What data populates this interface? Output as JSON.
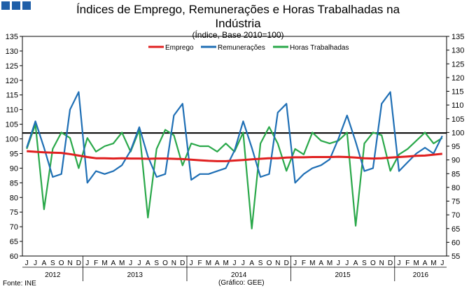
{
  "header": {
    "title": "Índices de Emprego, Remunerações e Horas Trabalhadas na Indústria",
    "subtitle": "(Índice, Base 2010=100)"
  },
  "footer": {
    "source": "Fonte: INE",
    "credit": "(Gráfico: GEE)"
  },
  "colors": {
    "emprego": "#e02020",
    "remuneracoes": "#1f6fb5",
    "horas": "#2aa84a",
    "reference_line": "#000000",
    "brand_squares": "#1f5fa8"
  },
  "chart_data": {
    "type": "line",
    "title": "Índices de Emprego, Remunerações e Horas Trabalhadas na Indústria",
    "subtitle": "(Índice, Base 2010=100)",
    "month_labels": [
      "J",
      "J",
      "A",
      "S",
      "O",
      "N",
      "D",
      "J",
      "F",
      "M",
      "A",
      "M",
      "J",
      "J",
      "A",
      "S",
      "O",
      "N",
      "D",
      "J",
      "F",
      "M",
      "A",
      "M",
      "J",
      "J",
      "A",
      "S",
      "O",
      "N",
      "D",
      "J",
      "F",
      "M",
      "A",
      "M",
      "J",
      "J",
      "A",
      "S",
      "O",
      "N",
      "D",
      "J",
      "F",
      "M",
      "A",
      "M",
      "J"
    ],
    "year_labels": [
      {
        "label": "2012",
        "start": 0,
        "end": 6
      },
      {
        "label": "2013",
        "start": 7,
        "end": 18
      },
      {
        "label": "2014",
        "start": 19,
        "end": 30
      },
      {
        "label": "2015",
        "start": 31,
        "end": 42
      },
      {
        "label": "2016",
        "start": 43,
        "end": 48
      }
    ],
    "y_left": {
      "min": 60,
      "max": 135,
      "step": 5,
      "series": [
        "Emprego",
        "Remunerações"
      ]
    },
    "y_right": {
      "min": 55,
      "max": 135,
      "step": 5,
      "series": [
        "Horas Trabalhadas"
      ]
    },
    "reference_line": {
      "axis": "left",
      "value": 102
    },
    "legend_position": "top-center",
    "series": [
      {
        "name": "Emprego",
        "axis": "left",
        "color": "#e02020",
        "values": [
          95.8,
          95.6,
          95.4,
          95.3,
          95.2,
          94.8,
          94.3,
          93.8,
          93.4,
          93.4,
          93.3,
          93.4,
          93.3,
          93.3,
          93.2,
          93.3,
          93.3,
          93.2,
          93.1,
          92.9,
          92.7,
          92.5,
          92.4,
          92.4,
          92.6,
          92.8,
          93.0,
          93.2,
          93.4,
          93.4,
          93.6,
          93.7,
          93.7,
          93.8,
          93.8,
          93.8,
          93.9,
          93.8,
          93.6,
          93.4,
          93.3,
          93.4,
          93.6,
          93.8,
          94.0,
          94.2,
          94.3,
          94.6,
          94.9
        ]
      },
      {
        "name": "Remunerações",
        "axis": "left",
        "color": "#1f6fb5",
        "values": [
          97,
          106,
          97,
          87,
          88,
          110,
          116,
          85,
          89,
          88,
          89,
          91,
          96,
          104,
          94,
          87,
          88,
          108,
          112,
          86,
          88,
          88,
          89,
          90,
          96,
          106,
          97,
          87,
          88,
          109,
          112,
          85,
          88,
          90,
          91,
          93,
          100,
          108,
          99,
          89,
          90,
          112,
          116,
          89,
          92,
          95,
          97,
          95,
          101
        ]
      },
      {
        "name": "Horas Trabalhadas",
        "axis": "right",
        "color": "#2aa84a",
        "values": [
          94,
          103,
          72,
          94,
          100,
          98,
          87,
          98,
          93,
          95,
          96,
          100,
          93,
          101,
          69,
          94,
          101,
          99,
          88,
          96,
          95,
          95,
          93,
          96,
          93,
          100,
          65,
          96,
          102,
          96,
          86,
          94,
          92,
          100,
          97,
          96,
          97,
          100,
          66,
          96,
          100,
          99,
          86,
          92,
          94,
          97,
          100,
          96,
          98
        ]
      }
    ]
  }
}
